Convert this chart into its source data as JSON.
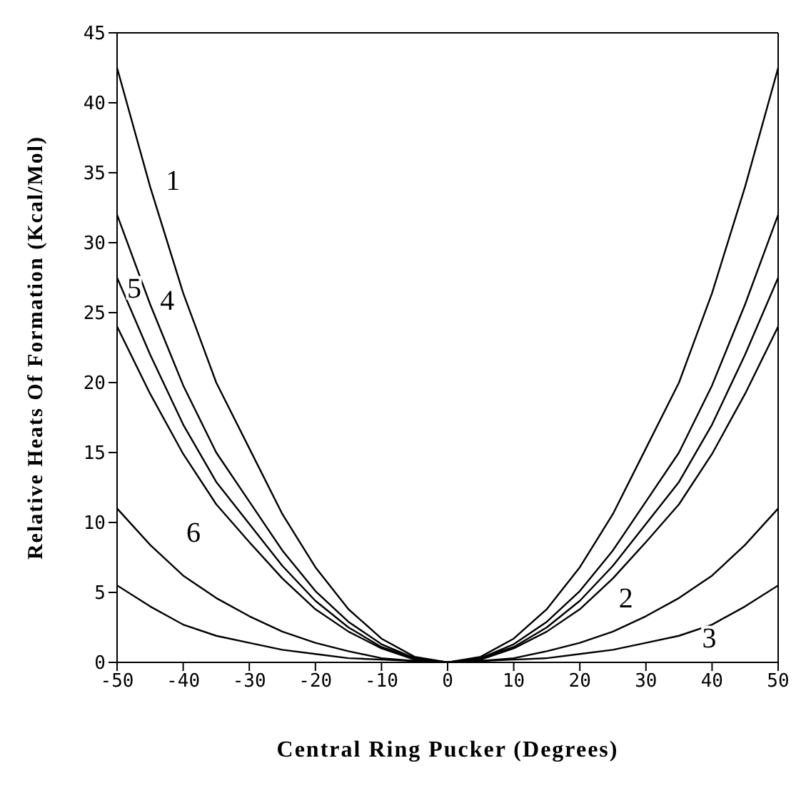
{
  "chart_data": {
    "type": "line",
    "xlabel": "Central Ring Pucker (Degrees)",
    "ylabel": "Relative Heats Of Formation (Kcal/Mol)",
    "x": [
      -50,
      -45,
      -40,
      -35,
      -30,
      -25,
      -20,
      -15,
      -10,
      -5,
      0,
      5,
      10,
      15,
      20,
      25,
      30,
      35,
      40,
      45,
      50
    ],
    "xlim": [
      -50,
      50
    ],
    "xticks": [
      {
        "value": -50,
        "label": "-50"
      },
      {
        "value": -40,
        "label": "-40"
      },
      {
        "value": -30,
        "label": "-30"
      },
      {
        "value": -20,
        "label": "-20"
      },
      {
        "value": -10,
        "label": "-10"
      },
      0,
      10,
      20,
      30,
      40,
      50
    ],
    "ylim": [
      0,
      45
    ],
    "yticks": [
      0,
      5,
      10,
      15,
      20,
      25,
      30,
      35,
      40,
      45
    ],
    "legend": false,
    "marker": "none",
    "line_style": "solid",
    "series": [
      {
        "name": "1",
        "color": "#000000",
        "values": [
          42.5,
          34,
          26.4,
          20,
          15.3,
          10.6,
          6.8,
          3.8,
          1.7,
          0.4,
          0,
          0.4,
          1.7,
          3.8,
          6.8,
          10.6,
          15.3,
          20,
          26.4,
          34,
          42.5
        ]
      },
      {
        "name": "2",
        "color": "#000000",
        "values": [
          11,
          8.4,
          6.2,
          4.6,
          3.3,
          2.2,
          1.4,
          0.8,
          0.3,
          0.1,
          0,
          0.1,
          0.3,
          0.8,
          1.4,
          2.2,
          3.3,
          4.6,
          6.2,
          8.4,
          11
        ]
      },
      {
        "name": "3",
        "color": "#000000",
        "values": [
          5.5,
          4,
          2.7,
          1.9,
          1.4,
          0.9,
          0.6,
          0.3,
          0.2,
          0.1,
          0,
          0.1,
          0.2,
          0.3,
          0.6,
          0.9,
          1.4,
          1.9,
          2.7,
          4,
          5.5
        ]
      },
      {
        "name": "4",
        "color": "#000000",
        "values": [
          32,
          25.6,
          19.8,
          15,
          11.5,
          8,
          5.1,
          2.9,
          1.3,
          0.3,
          0,
          0.3,
          1.3,
          2.9,
          5.1,
          8,
          11.5,
          15,
          19.8,
          25.6,
          32
        ]
      },
      {
        "name": "5",
        "color": "#000000",
        "values": [
          27.5,
          22,
          17,
          12.9,
          9.9,
          6.9,
          4.4,
          2.5,
          1.1,
          0.3,
          0,
          0.3,
          1.1,
          2.5,
          4.4,
          6.9,
          9.9,
          12.9,
          17,
          22,
          27.5
        ]
      },
      {
        "name": "6",
        "color": "#000000",
        "values": [
          24,
          19.2,
          14.9,
          11.3,
          8.6,
          6,
          3.8,
          2.2,
          1,
          0.2,
          0,
          0.2,
          1,
          2.2,
          3.8,
          6,
          8.6,
          11.3,
          14.9,
          19.2,
          24
        ]
      }
    ]
  }
}
